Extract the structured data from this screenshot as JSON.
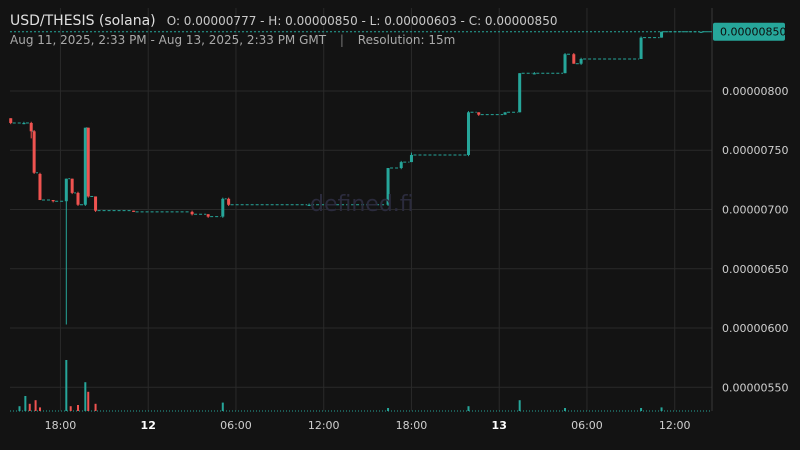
{
  "header": {
    "pair": "USD/THESIS (solana)",
    "ohlc": "O: 0.00000777 - H: 0.00000850 - L: 0.00000603 - C: 0.00000850",
    "range": "Aug 11, 2025, 2:33 PM - Aug 13, 2025, 2:33 PM GMT",
    "separator": "|",
    "resolution": "Resolution: 15m"
  },
  "watermark": "defined.fi",
  "colors": {
    "up": "#26a69a",
    "down": "#ef5350",
    "background": "#131313",
    "grid": "#2a2a2a",
    "last_price": "#26a69a"
  },
  "chart_data": {
    "type": "candlestick",
    "resolution": "15m",
    "last_price": 8.5e-06,
    "last_price_label": "0.00000850",
    "y_ticks": [
      "0.00000800",
      "0.00000750",
      "0.00000700",
      "0.00000650",
      "0.00000600",
      "0.00000550"
    ],
    "y_tick_values": [
      8e-06,
      7.5e-06,
      7e-06,
      6.5e-06,
      6e-06,
      5.5e-06
    ],
    "ylim": [
      5.3e-06,
      8.7e-06
    ],
    "x_ticks": [
      {
        "label": "18:00",
        "hour": 18,
        "bold": false
      },
      {
        "label": "12",
        "hour": 24,
        "bold": true
      },
      {
        "label": "06:00",
        "hour": 30,
        "bold": false
      },
      {
        "label": "12:00",
        "hour": 36,
        "bold": false
      },
      {
        "label": "18:00",
        "hour": 42,
        "bold": false
      },
      {
        "label": "13",
        "hour": 48,
        "bold": true
      },
      {
        "label": "06:00",
        "hour": 54,
        "bold": false
      },
      {
        "label": "12:00",
        "hour": 60,
        "bold": false
      }
    ],
    "x_unit": "hours since Aug 11, 2025 00:00 GMT",
    "xlim": [
      14.55,
      62.55
    ],
    "candles": [
      {
        "t": 14.6,
        "o": 7.77e-06,
        "h": 7.77e-06,
        "l": 7.72e-06,
        "c": 7.73e-06
      },
      {
        "t": 15.5,
        "o": 7.73e-06,
        "h": 7.74e-06,
        "l": 7.72e-06,
        "c": 7.73e-06
      },
      {
        "t": 16.0,
        "o": 7.73e-06,
        "h": 7.74e-06,
        "l": 7.6e-06,
        "c": 7.66e-06
      },
      {
        "t": 16.2,
        "o": 7.66e-06,
        "h": 7.67e-06,
        "l": 7.3e-06,
        "c": 7.31e-06
      },
      {
        "t": 16.6,
        "o": 7.3e-06,
        "h": 7.31e-06,
        "l": 7.08e-06,
        "c": 7.08e-06
      },
      {
        "t": 17.5,
        "o": 7.08e-06,
        "h": 7.08e-06,
        "l": 7.06e-06,
        "c": 7.07e-06
      },
      {
        "t": 18.4,
        "o": 7.07e-06,
        "h": 7.26e-06,
        "l": 6.03e-06,
        "c": 7.26e-06
      },
      {
        "t": 18.8,
        "o": 7.26e-06,
        "h": 7.26e-06,
        "l": 7.13e-06,
        "c": 7.14e-06
      },
      {
        "t": 19.2,
        "o": 7.14e-06,
        "h": 7.15e-06,
        "l": 7.03e-06,
        "c": 7.04e-06
      },
      {
        "t": 19.7,
        "o": 7.04e-06,
        "h": 7.69e-06,
        "l": 7.03e-06,
        "c": 7.69e-06
      },
      {
        "t": 19.9,
        "o": 7.69e-06,
        "h": 7.69e-06,
        "l": 7.1e-06,
        "c": 7.11e-06
      },
      {
        "t": 20.4,
        "o": 7.11e-06,
        "h": 7.11e-06,
        "l": 6.98e-06,
        "c": 6.99e-06
      },
      {
        "t": 23.0,
        "o": 6.99e-06,
        "h": 6.99e-06,
        "l": 6.98e-06,
        "c": 6.98e-06
      },
      {
        "t": 27.0,
        "o": 6.98e-06,
        "h": 6.99e-06,
        "l": 6.95e-06,
        "c": 6.96e-06
      },
      {
        "t": 28.1,
        "o": 6.96e-06,
        "h": 6.96e-06,
        "l": 6.93e-06,
        "c": 6.94e-06
      },
      {
        "t": 29.1,
        "o": 6.94e-06,
        "h": 7.1e-06,
        "l": 6.93e-06,
        "c": 7.09e-06
      },
      {
        "t": 29.5,
        "o": 7.09e-06,
        "h": 7.1e-06,
        "l": 7.03e-06,
        "c": 7.04e-06
      },
      {
        "t": 35.0,
        "o": 7.04e-06,
        "h": 7.05e-06,
        "l": 7.03e-06,
        "c": 7.04e-06
      },
      {
        "t": 40.4,
        "o": 7.04e-06,
        "h": 7.35e-06,
        "l": 7.03e-06,
        "c": 7.35e-06
      },
      {
        "t": 41.3,
        "o": 7.35e-06,
        "h": 7.41e-06,
        "l": 7.34e-06,
        "c": 7.4e-06
      },
      {
        "t": 42.0,
        "o": 7.4e-06,
        "h": 7.48e-06,
        "l": 7.4e-06,
        "c": 7.46e-06
      },
      {
        "t": 45.9,
        "o": 7.46e-06,
        "h": 7.83e-06,
        "l": 7.45e-06,
        "c": 7.82e-06
      },
      {
        "t": 46.6,
        "o": 7.82e-06,
        "h": 7.82e-06,
        "l": 7.79e-06,
        "c": 7.8e-06
      },
      {
        "t": 48.4,
        "o": 7.8e-06,
        "h": 7.82e-06,
        "l": 7.8e-06,
        "c": 7.82e-06
      },
      {
        "t": 49.4,
        "o": 7.82e-06,
        "h": 8.15e-06,
        "l": 7.82e-06,
        "c": 8.15e-06
      },
      {
        "t": 50.4,
        "o": 8.15e-06,
        "h": 8.16e-06,
        "l": 8.14e-06,
        "c": 8.15e-06
      },
      {
        "t": 52.5,
        "o": 8.15e-06,
        "h": 8.32e-06,
        "l": 8.15e-06,
        "c": 8.31e-06
      },
      {
        "t": 53.1,
        "o": 8.31e-06,
        "h": 8.32e-06,
        "l": 8.23e-06,
        "c": 8.23e-06
      },
      {
        "t": 53.6,
        "o": 8.23e-06,
        "h": 8.28e-06,
        "l": 8.22e-06,
        "c": 8.27e-06
      },
      {
        "t": 57.7,
        "o": 8.27e-06,
        "h": 8.46e-06,
        "l": 8.27e-06,
        "c": 8.45e-06
      },
      {
        "t": 59.1,
        "o": 8.45e-06,
        "h": 8.5e-06,
        "l": 8.45e-06,
        "c": 8.5e-06
      },
      {
        "t": 61.8,
        "o": 8.5e-06,
        "h": 8.5e-06,
        "l": 8.5e-06,
        "c": 8.5e-06
      }
    ],
    "volume_relative": [
      {
        "t": 15.2,
        "v": 0.08
      },
      {
        "t": 15.6,
        "v": 0.25
      },
      {
        "t": 15.9,
        "v": 0.12
      },
      {
        "t": 16.3,
        "v": 0.18
      },
      {
        "t": 16.6,
        "v": 0.06
      },
      {
        "t": 18.4,
        "v": 0.85
      },
      {
        "t": 18.7,
        "v": 0.08
      },
      {
        "t": 19.2,
        "v": 0.1
      },
      {
        "t": 19.7,
        "v": 0.48
      },
      {
        "t": 19.9,
        "v": 0.32
      },
      {
        "t": 20.4,
        "v": 0.12
      },
      {
        "t": 29.1,
        "v": 0.14
      },
      {
        "t": 40.4,
        "v": 0.05
      },
      {
        "t": 45.9,
        "v": 0.08
      },
      {
        "t": 49.4,
        "v": 0.18
      },
      {
        "t": 52.5,
        "v": 0.05
      },
      {
        "t": 57.7,
        "v": 0.05
      },
      {
        "t": 59.1,
        "v": 0.06
      }
    ]
  }
}
